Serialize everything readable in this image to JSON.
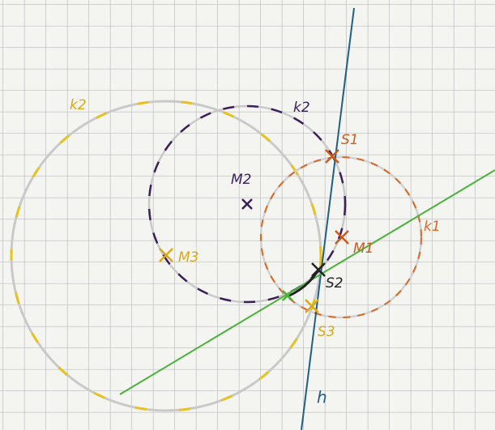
{
  "labels": [
    "k2",
    "k2",
    "S1",
    "M2",
    "M1",
    "k1",
    "M3",
    "S2",
    "S3",
    "h"
  ]
}
